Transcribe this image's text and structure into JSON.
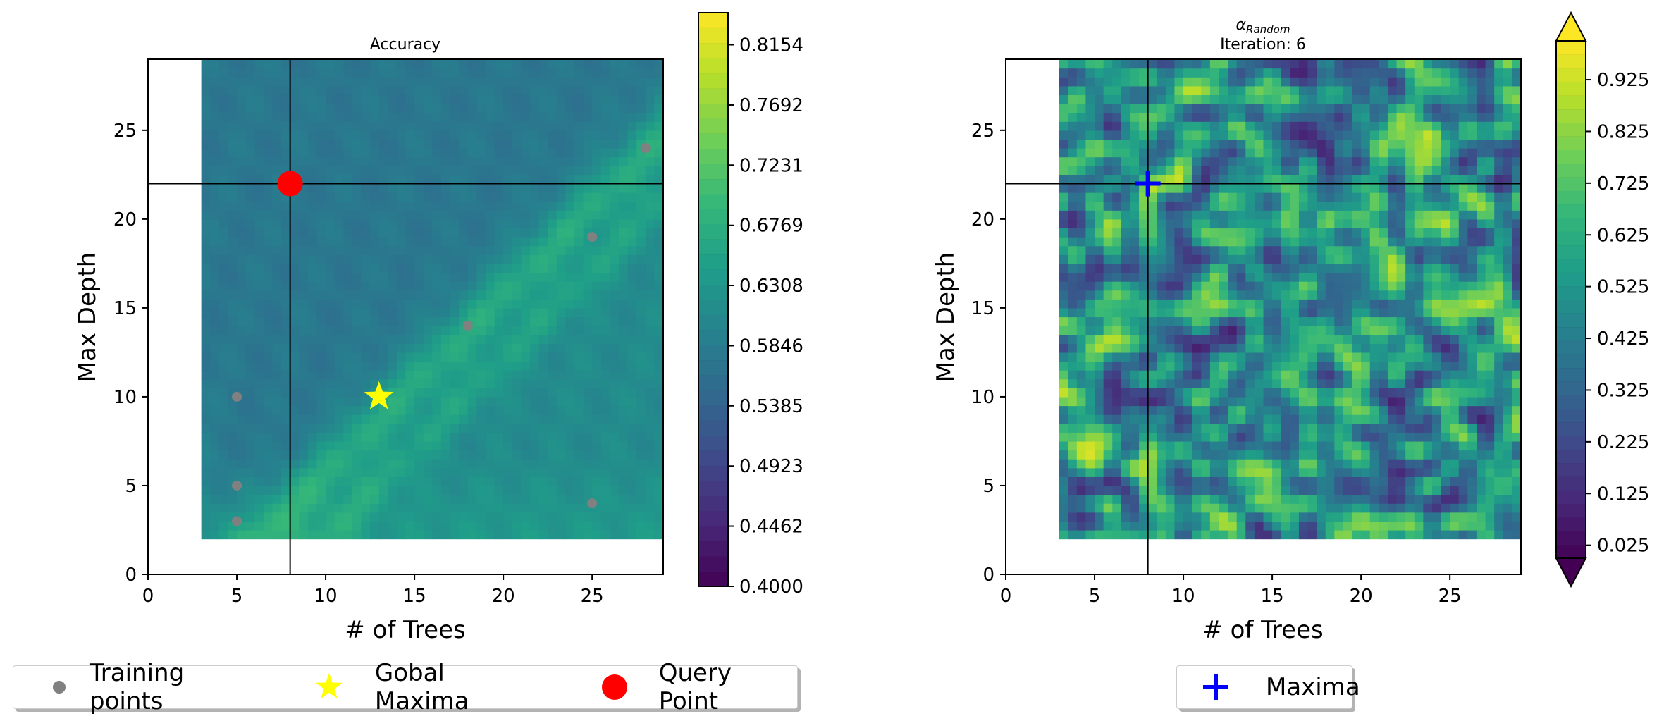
{
  "chart_data": [
    {
      "type": "heatmap",
      "title": "Accuracy",
      "xlabel": "# of Trees",
      "ylabel": "Max Depth",
      "xlim": [
        0,
        29
      ],
      "ylim": [
        0,
        29
      ],
      "data_extent": {
        "x": [
          3,
          29
        ],
        "y": [
          2,
          29
        ]
      },
      "xticks": [
        0,
        5,
        10,
        15,
        20,
        25
      ],
      "yticks": [
        0,
        5,
        10,
        15,
        20,
        25
      ],
      "colorbar": {
        "range": [
          0.4,
          0.84
        ],
        "ticks": [
          "0.4000",
          "0.4462",
          "0.4923",
          "0.5385",
          "0.5846",
          "0.6308",
          "0.6769",
          "0.7231",
          "0.7692",
          "0.8154"
        ],
        "colormap": "viridis"
      },
      "crosshair": {
        "x": 8,
        "y": 22
      },
      "training_points": [
        [
          5,
          3
        ],
        [
          5,
          5
        ],
        [
          5,
          10
        ],
        [
          18,
          14
        ],
        [
          25,
          19
        ],
        [
          25,
          4
        ],
        [
          28,
          24
        ]
      ],
      "global_maxima": [
        13,
        10
      ],
      "query_point": [
        8,
        22
      ],
      "colors": {
        "training": "#808080",
        "maxima": "#ffff00",
        "query": "#ff0000"
      }
    },
    {
      "type": "heatmap",
      "title": "αRandom",
      "title_symbol": "α",
      "title_subscript": "Random",
      "subtitle": "Iteration: 6",
      "xlabel": "# of Trees",
      "ylabel": "Max Depth",
      "xlim": [
        0,
        29
      ],
      "ylim": [
        0,
        29
      ],
      "data_extent": {
        "x": [
          3,
          29
        ],
        "y": [
          2,
          29
        ]
      },
      "xticks": [
        0,
        5,
        10,
        15,
        20,
        25
      ],
      "yticks": [
        0,
        5,
        10,
        15,
        20,
        25
      ],
      "colorbar": {
        "range": [
          0.0,
          1.0
        ],
        "ticks": [
          "0.025",
          "0.125",
          "0.225",
          "0.325",
          "0.425",
          "0.525",
          "0.625",
          "0.725",
          "0.825",
          "0.925"
        ],
        "colormap": "viridis",
        "extend": "both"
      },
      "crosshair": {
        "x": 8,
        "y": 22
      },
      "maxima": [
        8,
        22
      ],
      "colors": {
        "maxima": "#0000ff"
      }
    }
  ],
  "legend_left": {
    "training": "Training points",
    "maxima": "Gobal Maxima",
    "query": "Query Point"
  },
  "legend_right": {
    "maxima": "Maxima"
  }
}
